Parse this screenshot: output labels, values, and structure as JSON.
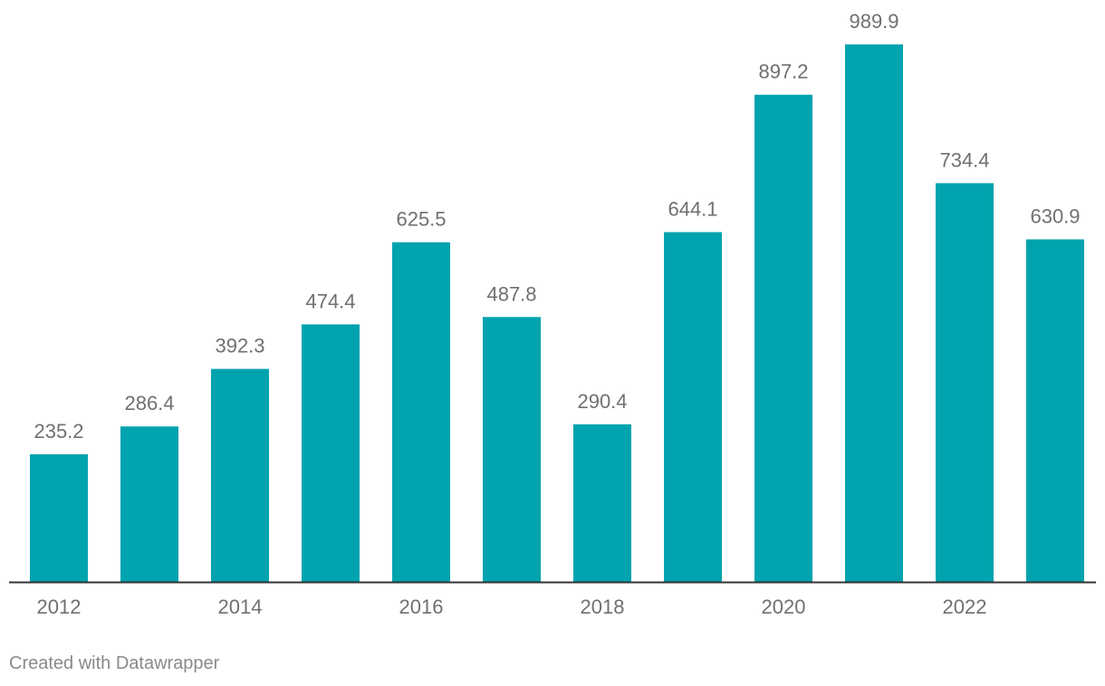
{
  "chart_data": {
    "type": "bar",
    "categories": [
      "2012",
      "2013",
      "2014",
      "2015",
      "2016",
      "2017",
      "2018",
      "2019",
      "2020",
      "2021",
      "2022",
      "2023"
    ],
    "values": [
      235.2,
      286.4,
      392.3,
      474.4,
      625.5,
      487.8,
      290.4,
      644.1,
      897.2,
      989.9,
      734.4,
      630.9
    ],
    "value_labels": [
      "235.2",
      "286.4",
      "392.3",
      "474.4",
      "625.5",
      "487.8",
      "290.4",
      "644.1",
      "897.2",
      "989.9",
      "734.4",
      "630.9"
    ],
    "tick_labels": [
      "2012",
      "",
      "2014",
      "",
      "2016",
      "",
      "2018",
      "",
      "2020",
      "",
      "2022",
      ""
    ],
    "title": "",
    "xlabel": "",
    "ylabel": "",
    "ylim": [
      0,
      1000
    ],
    "grid": false,
    "bar_color": "#00a3ae",
    "baseline_color": "#333333",
    "label_color": "#707070"
  },
  "footer": {
    "credit": "Created with Datawrapper"
  }
}
